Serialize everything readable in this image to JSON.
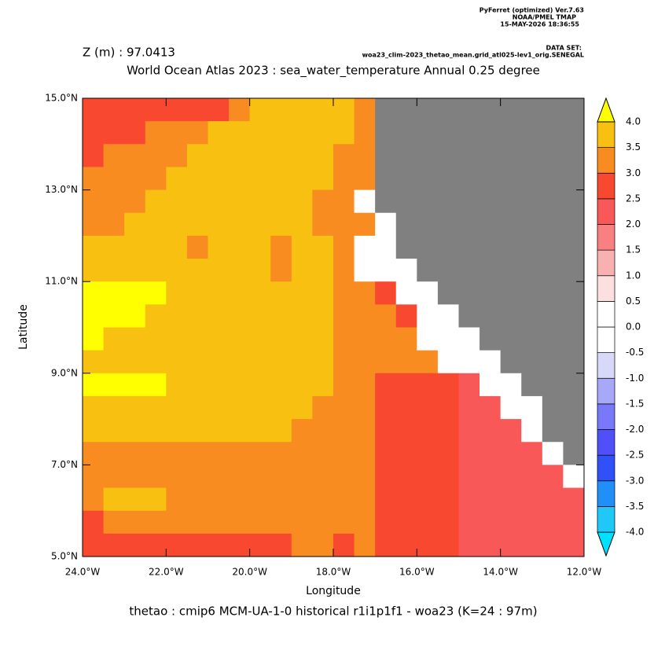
{
  "chart_data": {
    "type": "heatmap",
    "title": "World Ocean Atlas 2023 : sea_water_temperature Annual  0.25 degree",
    "subtitle": "Z (m) : 97.0413",
    "header_lines": [
      "PyFerret (optimized) Ver.7.63",
      "NOAA/PMEL TMAP",
      "15-MAY-2026 18:36:55"
    ],
    "dataset_label": "DATA SET:",
    "dataset": "woa23_clim-2023_thetao_mean.grid_atl025-lev1_orig.SENEGAL",
    "caption": "thetao : cmip6 MCM-UA-1-0 historical r1i1p1f1 - woa23  (K=24 : 97m)",
    "xlabel": "Longitude",
    "ylabel": "Latitude",
    "xlim": [
      -24,
      -12
    ],
    "ylim": [
      5,
      15
    ],
    "xticks": [
      {
        "value": -24,
        "label": "24.0°W"
      },
      {
        "value": -22,
        "label": "22.0°W"
      },
      {
        "value": -20,
        "label": "20.0°W"
      },
      {
        "value": -18,
        "label": "18.0°W"
      },
      {
        "value": -16,
        "label": "16.0°W"
      },
      {
        "value": -14,
        "label": "14.0°W"
      },
      {
        "value": -12,
        "label": "12.0°W"
      }
    ],
    "yticks": [
      {
        "value": 5,
        "label": "5.0°N"
      },
      {
        "value": 7,
        "label": "7.0°N"
      },
      {
        "value": 9,
        "label": "9.0°N"
      },
      {
        "value": 11,
        "label": "11.0°N"
      },
      {
        "value": 13,
        "label": "13.0°N"
      },
      {
        "value": 15,
        "label": "15.0°N"
      }
    ],
    "x": [
      -23.75,
      -23.25,
      -22.75,
      -22.25,
      -21.75,
      -21.25,
      -20.75,
      -20.25,
      -19.75,
      -19.25,
      -18.75,
      -18.25,
      -17.75,
      -17.25,
      -16.75,
      -16.25,
      -15.75,
      -15.25,
      -14.75,
      -14.25,
      -13.75,
      -13.25,
      -12.75,
      -12.25
    ],
    "y": [
      14.75,
      14.25,
      13.75,
      13.25,
      12.75,
      12.25,
      11.75,
      11.25,
      10.75,
      10.25,
      9.75,
      9.25,
      8.75,
      8.25,
      7.75,
      7.25,
      6.75,
      6.25,
      5.75,
      5.25
    ],
    "values": [
      [
        2.75,
        2.75,
        2.75,
        2.75,
        2.75,
        2.75,
        2.75,
        3.25,
        3.75,
        3.75,
        3.75,
        3.75,
        3.75,
        3.25,
        null,
        null,
        null,
        null,
        null,
        null,
        null,
        null,
        null,
        null
      ],
      [
        2.75,
        2.75,
        2.75,
        3.25,
        3.25,
        3.25,
        3.75,
        3.75,
        3.75,
        3.75,
        3.75,
        3.75,
        3.75,
        3.25,
        null,
        null,
        null,
        null,
        null,
        null,
        null,
        null,
        null,
        null
      ],
      [
        2.75,
        3.25,
        3.25,
        3.25,
        3.25,
        3.75,
        3.75,
        3.75,
        3.75,
        3.75,
        3.75,
        3.75,
        3.25,
        3.25,
        null,
        null,
        null,
        null,
        null,
        null,
        null,
        null,
        null,
        null
      ],
      [
        3.25,
        3.25,
        3.25,
        3.25,
        3.75,
        3.75,
        3.75,
        3.75,
        3.75,
        3.75,
        3.75,
        3.75,
        3.25,
        3.25,
        null,
        null,
        null,
        null,
        null,
        null,
        null,
        null,
        null,
        null
      ],
      [
        3.25,
        3.25,
        3.25,
        3.75,
        3.75,
        3.75,
        3.75,
        3.75,
        3.75,
        3.75,
        3.75,
        3.25,
        3.25,
        0,
        null,
        null,
        null,
        null,
        null,
        null,
        null,
        null,
        null,
        null
      ],
      [
        3.25,
        3.25,
        3.75,
        3.75,
        3.75,
        3.75,
        3.75,
        3.75,
        3.75,
        3.75,
        3.75,
        3.25,
        3.25,
        3.25,
        0,
        null,
        null,
        null,
        null,
        null,
        null,
        null,
        null,
        null
      ],
      [
        3.75,
        3.75,
        3.75,
        3.75,
        3.75,
        3.25,
        3.75,
        3.75,
        3.75,
        3.25,
        3.75,
        3.75,
        3.25,
        0,
        0,
        null,
        null,
        null,
        null,
        null,
        null,
        null,
        null,
        null
      ],
      [
        3.75,
        3.75,
        3.75,
        3.75,
        3.75,
        3.75,
        3.75,
        3.75,
        3.75,
        3.25,
        3.75,
        3.75,
        3.25,
        0,
        0,
        0,
        null,
        null,
        null,
        null,
        null,
        null,
        null,
        null
      ],
      [
        4.25,
        4.25,
        4.25,
        4.25,
        3.75,
        3.75,
        3.75,
        3.75,
        3.75,
        3.75,
        3.75,
        3.75,
        3.25,
        3.25,
        2.75,
        0,
        0,
        null,
        null,
        null,
        null,
        null,
        null,
        null
      ],
      [
        4.25,
        4.25,
        4.25,
        3.75,
        3.75,
        3.75,
        3.75,
        3.75,
        3.75,
        3.75,
        3.75,
        3.75,
        3.25,
        3.25,
        3.25,
        2.75,
        0,
        0,
        null,
        null,
        null,
        null,
        null,
        null
      ],
      [
        4.25,
        3.75,
        3.75,
        3.75,
        3.75,
        3.75,
        3.75,
        3.75,
        3.75,
        3.75,
        3.75,
        3.75,
        3.25,
        3.25,
        3.25,
        3.25,
        0,
        0,
        0,
        null,
        null,
        null,
        null,
        null
      ],
      [
        3.75,
        3.75,
        3.75,
        3.75,
        3.75,
        3.75,
        3.75,
        3.75,
        3.75,
        3.75,
        3.75,
        3.75,
        3.25,
        3.25,
        3.25,
        3.25,
        3.25,
        0,
        0,
        0,
        null,
        null,
        null,
        null
      ],
      [
        4.25,
        4.25,
        4.25,
        4.25,
        3.75,
        3.75,
        3.75,
        3.75,
        3.75,
        3.75,
        3.75,
        3.75,
        3.25,
        3.25,
        2.75,
        2.75,
        2.75,
        2.75,
        2.25,
        0,
        0,
        null,
        null,
        null
      ],
      [
        3.75,
        3.75,
        3.75,
        3.75,
        3.75,
        3.75,
        3.75,
        3.75,
        3.75,
        3.75,
        3.75,
        3.25,
        3.25,
        3.25,
        2.75,
        2.75,
        2.75,
        2.75,
        2.25,
        2.25,
        0,
        0,
        null,
        null
      ],
      [
        3.75,
        3.75,
        3.75,
        3.75,
        3.75,
        3.75,
        3.75,
        3.75,
        3.75,
        3.75,
        3.25,
        3.25,
        3.25,
        3.25,
        2.75,
        2.75,
        2.75,
        2.75,
        2.25,
        2.25,
        2.25,
        0,
        null,
        null
      ],
      [
        3.25,
        3.25,
        3.25,
        3.25,
        3.25,
        3.25,
        3.25,
        3.25,
        3.25,
        3.25,
        3.25,
        3.25,
        3.25,
        3.25,
        2.75,
        2.75,
        2.75,
        2.75,
        2.25,
        2.25,
        2.25,
        2.25,
        0,
        null
      ],
      [
        3.25,
        3.25,
        3.25,
        3.25,
        3.25,
        3.25,
        3.25,
        3.25,
        3.25,
        3.25,
        3.25,
        3.25,
        3.25,
        3.25,
        2.75,
        2.75,
        2.75,
        2.75,
        2.25,
        2.25,
        2.25,
        2.25,
        2.25,
        0
      ],
      [
        3.25,
        3.75,
        3.75,
        3.75,
        3.25,
        3.25,
        3.25,
        3.25,
        3.25,
        3.25,
        3.25,
        3.25,
        3.25,
        3.25,
        2.75,
        2.75,
        2.75,
        2.75,
        2.25,
        2.25,
        2.25,
        2.25,
        2.25,
        2.25
      ],
      [
        2.75,
        3.25,
        3.25,
        3.25,
        3.25,
        3.25,
        3.25,
        3.25,
        3.25,
        3.25,
        3.25,
        3.25,
        3.25,
        3.25,
        2.75,
        2.75,
        2.75,
        2.75,
        2.25,
        2.25,
        2.25,
        2.25,
        2.25,
        2.25
      ],
      [
        2.75,
        2.75,
        2.75,
        2.75,
        2.75,
        2.75,
        2.75,
        2.75,
        2.75,
        2.75,
        3.25,
        3.25,
        2.75,
        3.25,
        2.75,
        2.75,
        2.75,
        2.75,
        2.25,
        2.25,
        2.25,
        2.25,
        2.25,
        2.25
      ]
    ],
    "land_color": "#808080",
    "colorbar": {
      "levels": [
        {
          "value": -4,
          "label": "-4.0"
        },
        {
          "value": -3.5,
          "label": "-3.5"
        },
        {
          "value": -3,
          "label": "-3.0"
        },
        {
          "value": -2.5,
          "label": "-2.5"
        },
        {
          "value": -2,
          "label": "-2.0"
        },
        {
          "value": -1.5,
          "label": "-1.5"
        },
        {
          "value": -1,
          "label": "-1.0"
        },
        {
          "value": -0.5,
          "label": "-0.5"
        },
        {
          "value": 0,
          "label": "0.0"
        },
        {
          "value": 0.5,
          "label": "0.5"
        },
        {
          "value": 1,
          "label": "1.0"
        },
        {
          "value": 1.5,
          "label": "1.5"
        },
        {
          "value": 2,
          "label": "2.0"
        },
        {
          "value": 2.5,
          "label": "2.5"
        },
        {
          "value": 3,
          "label": "3.0"
        },
        {
          "value": 3.5,
          "label": "3.5"
        },
        {
          "value": 4,
          "label": "4.0"
        }
      ],
      "colors": [
        "#00e0ff",
        "#20c8f8",
        "#2090f8",
        "#3050f8",
        "#5050f8",
        "#7878f8",
        "#a8a8f8",
        "#d8d8f8",
        "#ffffff",
        "#ffffff",
        "#fce0e0",
        "#f8b0b0",
        "#f88080",
        "#f85858",
        "#f84830",
        "#f88c20",
        "#f8c010",
        "#ffff00"
      ]
    }
  }
}
